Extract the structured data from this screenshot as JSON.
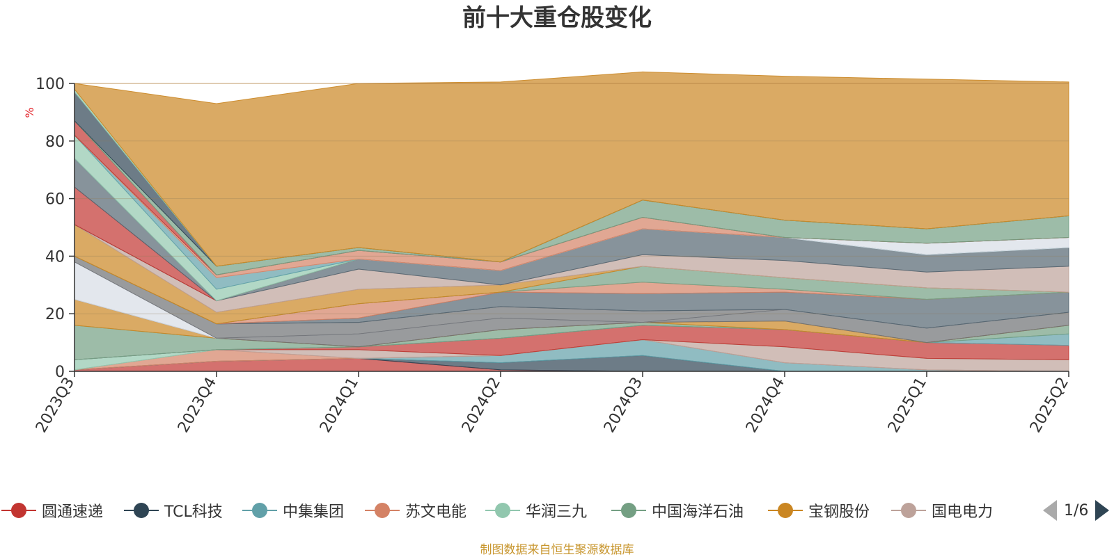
{
  "title": "前十大重仓股变化",
  "source_note": "制图数据来自恒生聚源数据库",
  "legend_pager": {
    "text": "1/6"
  },
  "legend": [
    {
      "name": "圆通速递",
      "color": "#c23531"
    },
    {
      "name": "TCL科技",
      "color": "#2f4554"
    },
    {
      "name": "中集集团",
      "color": "#61a0a8"
    },
    {
      "name": "苏文电能",
      "color": "#d48265"
    },
    {
      "name": "华润三九",
      "color": "#91c7ae"
    },
    {
      "name": "中国海洋石油",
      "color": "#749f83"
    },
    {
      "name": "宝钢股份",
      "color": "#ca8622"
    },
    {
      "name": "国电电力",
      "color": "#bda29a"
    }
  ],
  "colors": {
    "accent": "#c23531",
    "ylabel": "#e3242b",
    "source": "#c8962e"
  },
  "chart_data": {
    "type": "area",
    "stacked": true,
    "title": "前十大重仓股变化",
    "ylabel": "%",
    "ylim": [
      0,
      100
    ],
    "yticks": [
      0,
      20,
      40,
      60,
      80,
      100
    ],
    "grid": true,
    "legend_position": "bottom",
    "categories": [
      "2023Q3",
      "2023Q4",
      "2024Q1",
      "2024Q2",
      "2024Q3",
      "2024Q4",
      "2025Q1",
      "2025Q2"
    ],
    "layers": [
      {
        "color": "#c23531",
        "values": [
          0.5,
          3.5,
          4.5,
          0.5,
          0,
          0,
          0,
          0
        ]
      },
      {
        "color": "#2f4554",
        "values": [
          0,
          0,
          0,
          2.5,
          5.5,
          0,
          0,
          0
        ]
      },
      {
        "color": "#61a0a8",
        "values": [
          0,
          0,
          0,
          2.5,
          5.5,
          3,
          0.5,
          0
        ]
      },
      {
        "color": "#d48265",
        "values": [
          0,
          4,
          0,
          0,
          0,
          0,
          0,
          0
        ]
      },
      {
        "color": "#bda29a",
        "values": [
          0,
          0,
          3,
          0,
          0,
          5.5,
          4,
          4
        ]
      },
      {
        "color": "#91c7ae",
        "values": [
          3.5,
          0,
          0,
          0,
          0,
          0,
          0,
          0
        ]
      },
      {
        "color": "#c23531",
        "values": [
          0,
          0,
          1,
          6,
          5,
          6,
          5.5,
          5
        ]
      },
      {
        "color": "#61a0a8",
        "values": [
          0,
          0,
          0,
          0,
          0,
          0,
          0,
          4
        ]
      },
      {
        "color": "#749f83",
        "values": [
          12,
          4,
          0,
          3,
          1,
          0,
          0,
          3
        ]
      },
      {
        "color": "#ca8622",
        "values": [
          9,
          0,
          0,
          0,
          0,
          3,
          0,
          0
        ]
      },
      {
        "color": "#6e7074",
        "values": [
          0,
          0,
          4.5,
          4,
          0,
          4,
          5,
          4.5
        ]
      },
      {
        "color": "#d7dde6",
        "values": [
          13,
          0,
          0,
          0,
          0,
          0,
          0,
          0
        ]
      },
      {
        "color": "#6e7074",
        "values": [
          2,
          5,
          4,
          4,
          4,
          0,
          0,
          0
        ]
      },
      {
        "color": "#546570",
        "values": [
          0,
          0,
          1.5,
          5,
          6,
          6,
          10,
          7
        ]
      },
      {
        "color": "#d48265",
        "values": [
          0,
          0,
          5,
          0,
          4,
          1,
          0,
          0
        ]
      },
      {
        "color": "#749f83",
        "values": [
          0,
          0,
          0,
          0,
          5.5,
          4,
          4,
          0
        ]
      },
      {
        "color": "#ca8622",
        "values": [
          11,
          4,
          5,
          2.5,
          0,
          0,
          0,
          0
        ]
      },
      {
        "color": "#bda29a",
        "values": [
          0,
          4,
          7,
          0,
          4,
          6,
          5.5,
          9
        ]
      },
      {
        "color": "#546570",
        "values": [
          0,
          0,
          3.5,
          5,
          9,
          8,
          6,
          6.5
        ]
      },
      {
        "color": "#c23531",
        "values": [
          13,
          0,
          0,
          0,
          0,
          0,
          0,
          0
        ]
      },
      {
        "color": "#546570",
        "values": [
          10,
          0,
          0,
          0,
          0,
          0,
          0,
          0
        ]
      },
      {
        "color": "#91c7ae",
        "values": [
          8,
          4,
          0,
          0,
          0,
          0,
          0,
          0
        ]
      },
      {
        "color": "#61a0a8",
        "values": [
          0,
          4,
          0,
          0,
          0,
          0,
          0,
          0
        ]
      },
      {
        "color": "#d7dde6",
        "values": [
          0,
          0,
          0,
          0,
          0,
          0,
          4,
          3.5
        ]
      },
      {
        "color": "#d48265",
        "values": [
          0,
          1,
          3,
          3,
          4,
          0,
          0,
          0
        ]
      },
      {
        "color": "#91c7ae",
        "values": [
          0,
          0,
          0,
          0,
          0,
          0,
          0,
          0
        ]
      },
      {
        "color": "#c23531",
        "values": [
          5,
          0,
          0,
          0,
          0,
          0,
          0,
          0
        ]
      },
      {
        "color": "#749f83",
        "values": [
          0,
          3,
          1,
          0,
          6,
          6,
          5,
          7.5
        ]
      },
      {
        "color": "#2f4554",
        "values": [
          10,
          0,
          0,
          0,
          0,
          0,
          0,
          0
        ]
      },
      {
        "color": "#91c7ae",
        "values": [
          1,
          0,
          0,
          0,
          0,
          0,
          0,
          0
        ]
      },
      {
        "color": "#ca8622",
        "values": [
          2,
          56.5,
          57,
          62.5,
          44.5,
          50,
          52,
          46.5
        ]
      }
    ]
  }
}
